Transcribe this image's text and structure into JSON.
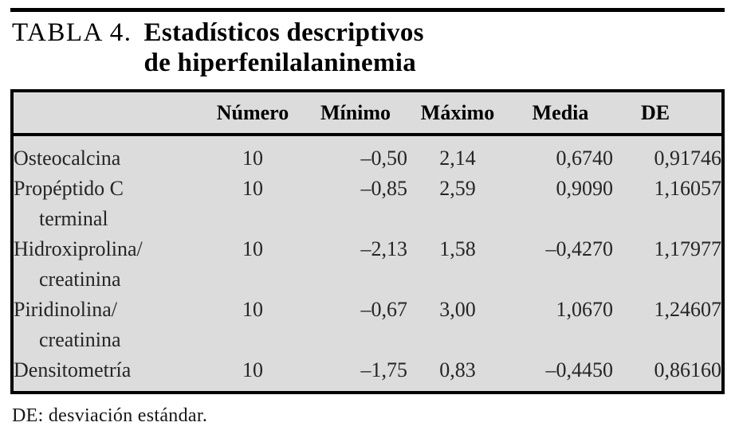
{
  "page": {
    "title_label": "TABLA 4.",
    "title_line1": "Estadísticos descriptivos",
    "title_line2": "de hiperfenilalaninemia",
    "footnote": "DE: desviación estándar."
  },
  "colors": {
    "table_background": "#dcdcdc",
    "rule": "#000000",
    "text": "#252525"
  },
  "table": {
    "columns": [
      "",
      "Número",
      "Mínimo",
      "Máximo",
      "Media",
      "DE"
    ],
    "rows": [
      {
        "label_line1": "Osteocalcina",
        "label_line2": "",
        "numero": "10",
        "minimo": "–0,50",
        "maximo": "2,14",
        "media": "0,6740",
        "de": "0,91746"
      },
      {
        "label_line1": "Propéptido C",
        "label_line2": "terminal",
        "numero": "10",
        "minimo": "–0,85",
        "maximo": "2,59",
        "media": "0,9090",
        "de": "1,16057"
      },
      {
        "label_line1": "Hidroxiprolina/",
        "label_line2": "creatinina",
        "numero": "10",
        "minimo": "–2,13",
        "maximo": "1,58",
        "media": "–0,4270",
        "de": "1,17977"
      },
      {
        "label_line1": "Piridinolina/",
        "label_line2": "creatinina",
        "numero": "10",
        "minimo": "–0,67",
        "maximo": "3,00",
        "media": "1,0670",
        "de": "1,24607"
      },
      {
        "label_line1": "Densitometría",
        "label_line2": "",
        "numero": "10",
        "minimo": "–1,75",
        "maximo": "0,83",
        "media": "–0,4450",
        "de": "0,86160"
      }
    ]
  }
}
